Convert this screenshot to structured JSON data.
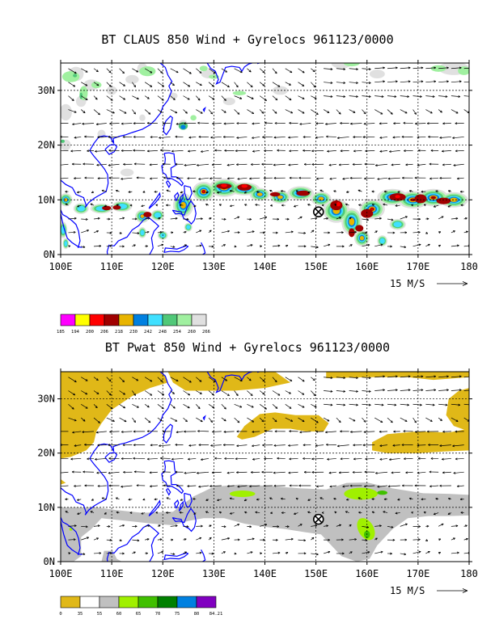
{
  "panel1": {
    "title": "BT CLAUS 850 Wind + Gyrelocs 961123/0000",
    "lat_labels": [
      "30N",
      "20N",
      "10N",
      "0N"
    ],
    "lon_labels": [
      "100E",
      "110E",
      "120E",
      "130E",
      "140E",
      "150E",
      "160E",
      "170E",
      "180"
    ],
    "ref_vector": "15 M/S",
    "colorbar": {
      "colors": [
        "#ff00ff",
        "#ffff00",
        "#ff0000",
        "#a00000",
        "#e8b400",
        "#0080e0",
        "#40e0ff",
        "#50c878",
        "#a0f0a0",
        "#e0e0e0"
      ],
      "labels": [
        "185",
        "194",
        "200",
        "206",
        "218",
        "230",
        "242",
        "248",
        "254",
        "260",
        "266"
      ]
    },
    "marker": {
      "lon": 150.5,
      "lat": 7.8
    }
  },
  "panel2": {
    "title": "BT Pwat 850 Wind + Gyrelocs 961123/0000",
    "lat_labels": [
      "30N",
      "20N",
      "10N",
      "0N"
    ],
    "lon_labels": [
      "100E",
      "110E",
      "120E",
      "130E",
      "140E",
      "150E",
      "160E",
      "170E",
      "180"
    ],
    "ref_vector": "15 M/S",
    "colorbar": {
      "colors": [
        "#e0b818",
        "#ffffff",
        "#c0c0c0",
        "#a0f000",
        "#40c000",
        "#008000",
        "#0080e0",
        "#8000c0"
      ],
      "labels": [
        "0",
        "35",
        "55",
        "60",
        "65",
        "70",
        "75",
        "80",
        "84.21"
      ]
    },
    "marker": {
      "lon": 150.5,
      "lat": 7.8
    }
  }
}
